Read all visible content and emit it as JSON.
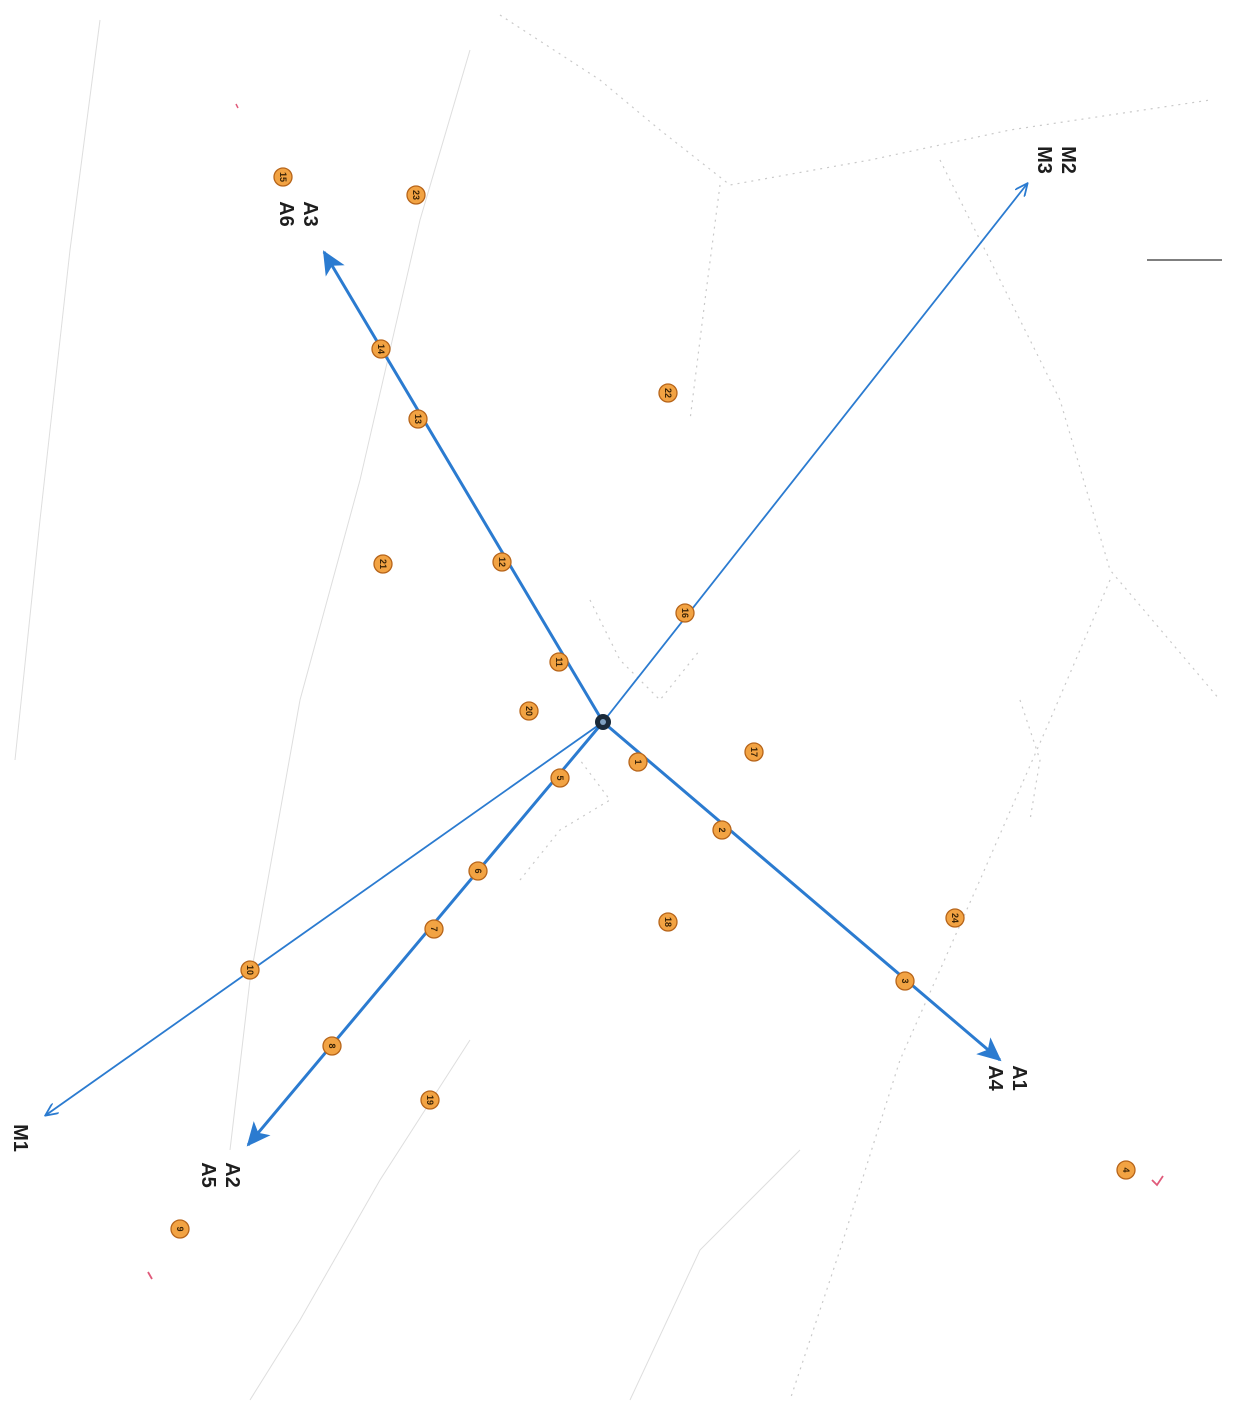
{
  "axis_labels": {
    "a3": "A3",
    "a6": "A6",
    "m2": "M2",
    "m3": "M3",
    "a1": "A1",
    "a4": "A4",
    "a2": "A2",
    "a5": "A5",
    "m1": "M1"
  },
  "markers": [
    "1",
    "2",
    "3",
    "4",
    "5",
    "6",
    "7",
    "8",
    "9",
    "10",
    "11",
    "12",
    "13",
    "14",
    "15",
    "16",
    "17",
    "18",
    "19",
    "20",
    "21",
    "22",
    "23",
    "24"
  ],
  "colors": {
    "axis": "#2b7bd0",
    "marker_fill": "#f2a343",
    "marker_border": "#b7651a",
    "center": "#1a2a3a"
  }
}
